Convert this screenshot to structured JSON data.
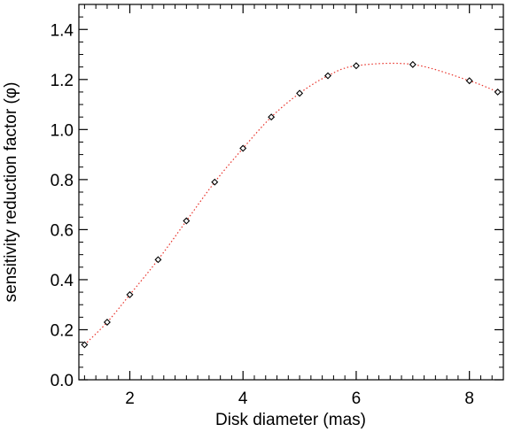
{
  "chart_data": {
    "type": "scatter",
    "xlabel": "Disk diameter (mas)",
    "ylabel": "sensitivity reduction factor (φ)",
    "xlim": [
      1.1,
      8.6
    ],
    "ylim": [
      0.0,
      1.5
    ],
    "x_ticks": [
      2,
      4,
      6,
      8
    ],
    "x_tick_labels": [
      "2",
      "4",
      "6",
      "8"
    ],
    "y_ticks": [
      0.0,
      0.2,
      0.4,
      0.6,
      0.8,
      1.0,
      1.2,
      1.4
    ],
    "y_tick_labels": [
      "0.0",
      "0.2",
      "0.4",
      "0.6",
      "0.8",
      "1.0",
      "1.2",
      "1.4"
    ],
    "grid": false,
    "series": [
      {
        "marker": "diamond",
        "line_style": "dotted",
        "line_color": "#e8322a",
        "marker_color": "#000000",
        "x": [
          1.2,
          1.6,
          2.0,
          2.5,
          3.0,
          3.5,
          4.0,
          4.5,
          5.0,
          5.5,
          6.0,
          7.0,
          8.0,
          8.5
        ],
        "y": [
          0.14,
          0.23,
          0.34,
          0.48,
          0.635,
          0.79,
          0.925,
          1.05,
          1.145,
          1.215,
          1.255,
          1.26,
          1.195,
          1.15
        ]
      }
    ]
  }
}
